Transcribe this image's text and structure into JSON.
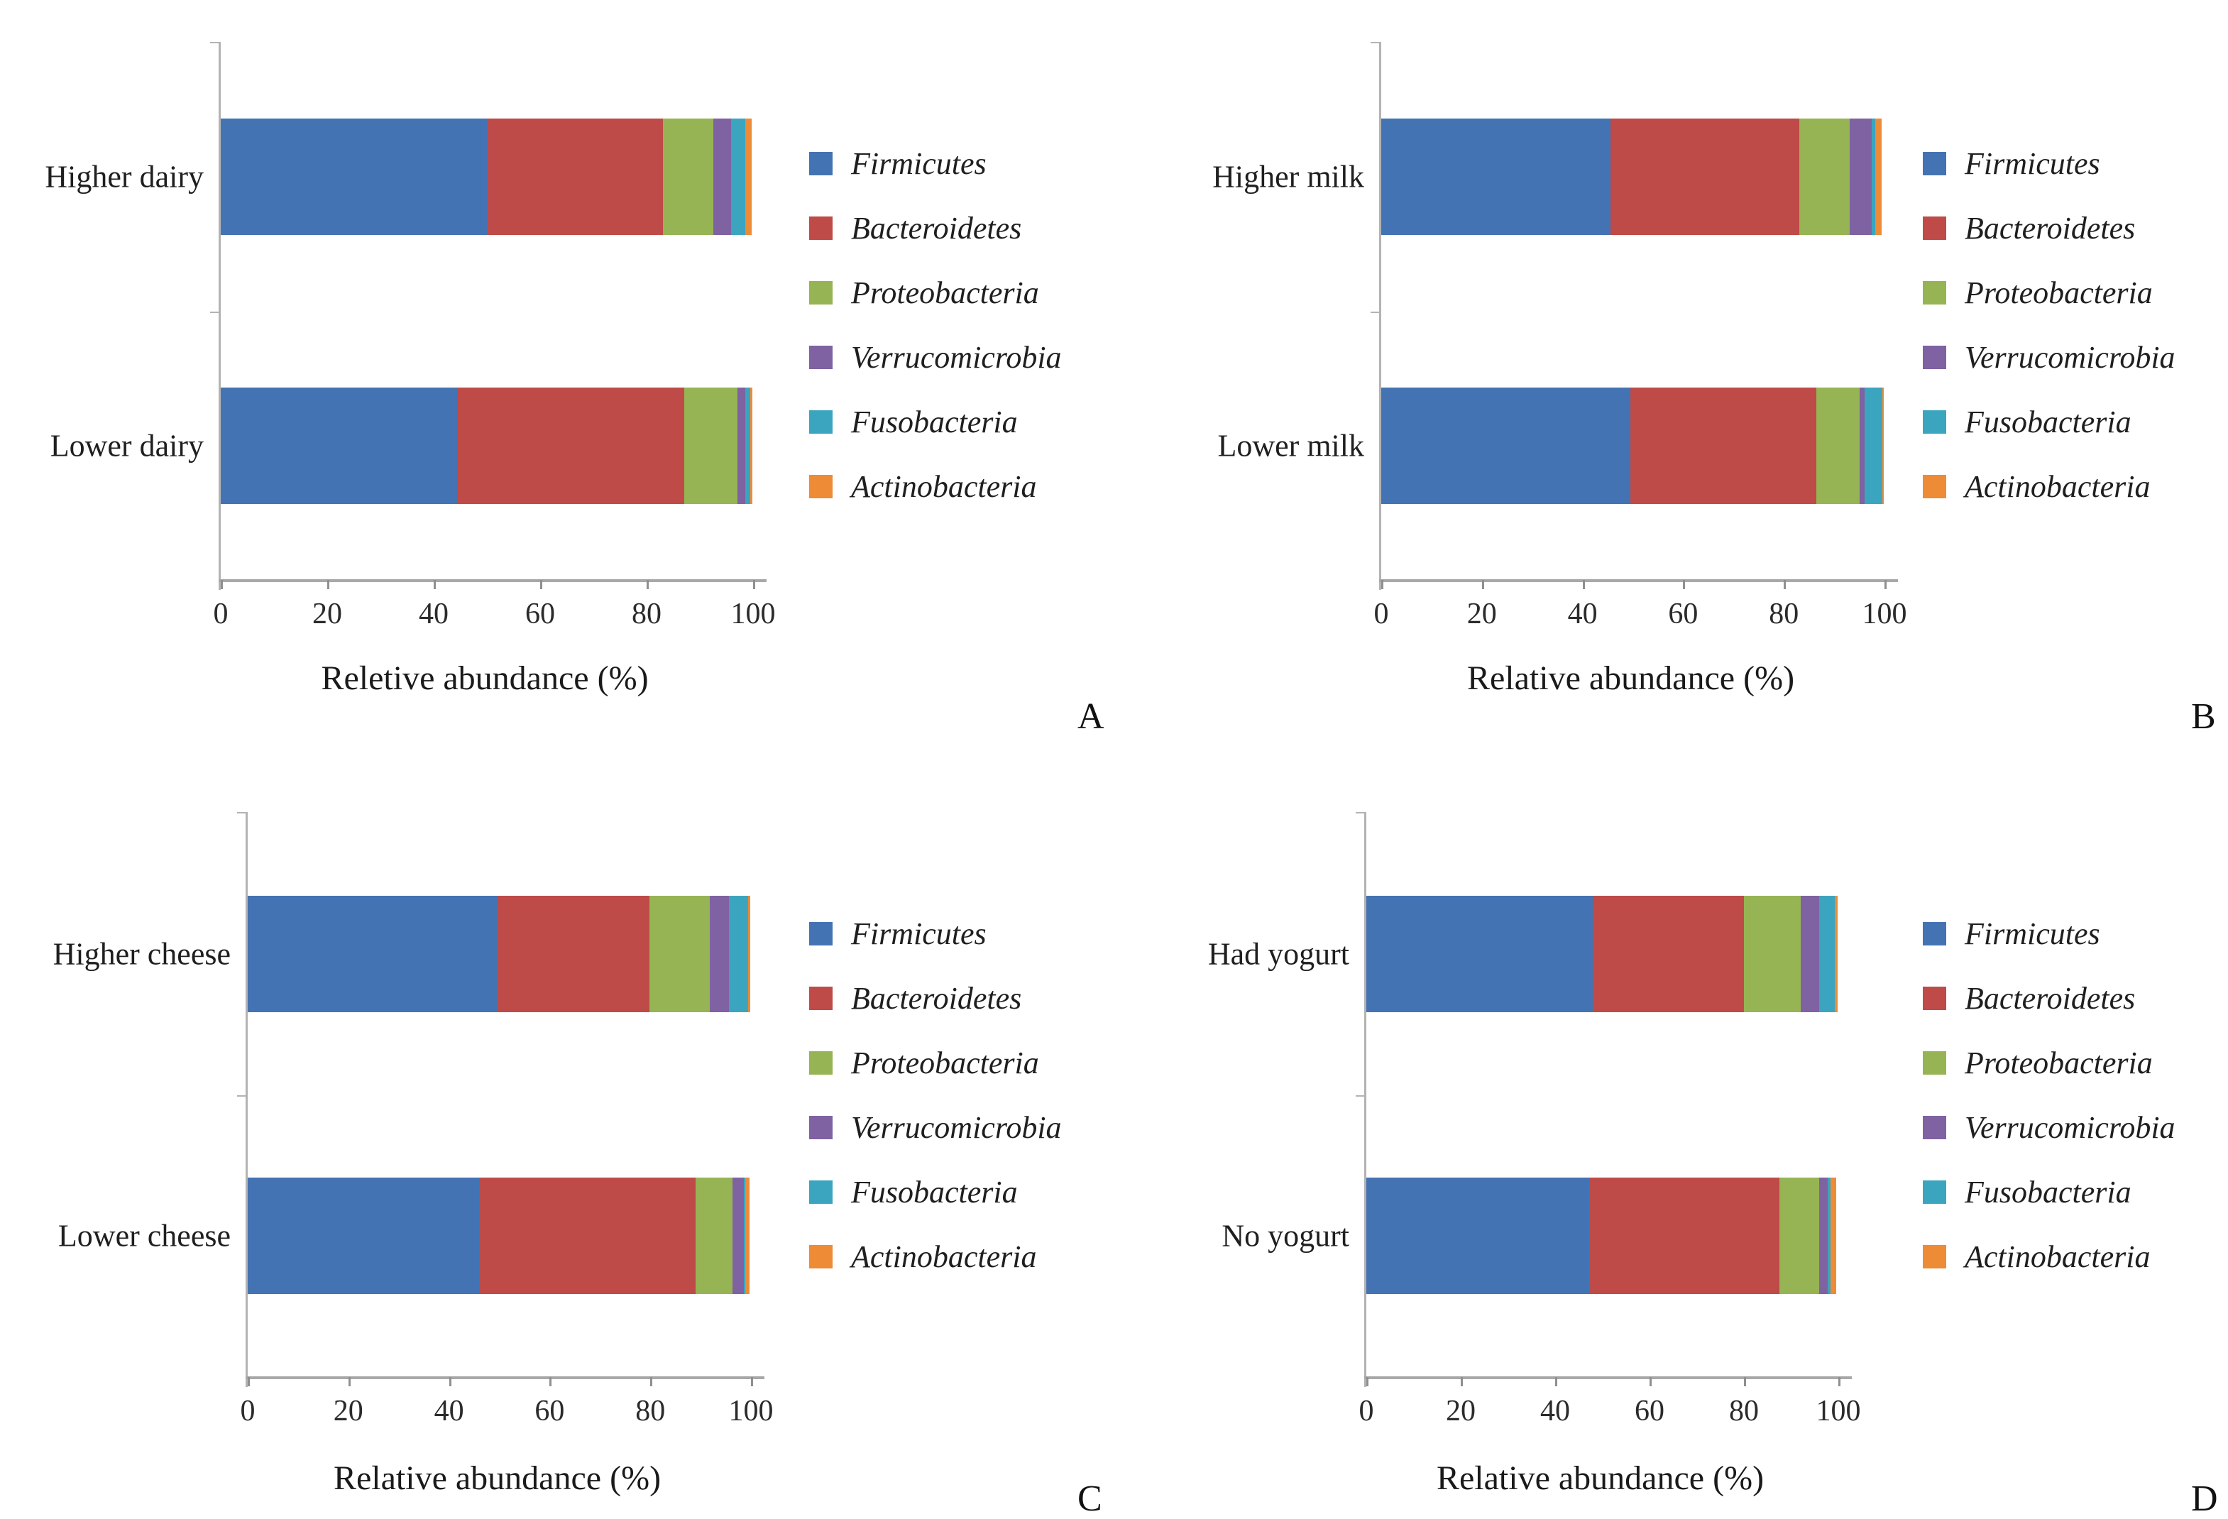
{
  "series_colors": {
    "Firmicutes": "#4473B3",
    "Bacteroidetes": "#BE4B48",
    "Proteobacteria": "#96B454",
    "Verrucomicrobia": "#7E62A1",
    "Fusobacteria": "#3BA5C0",
    "Actinobacteria": "#EE8B36"
  },
  "chart_data": [
    {
      "panel": "A",
      "type": "bar",
      "orientation": "horizontal",
      "stacked": true,
      "categories": [
        "Higher dairy",
        "Lower dairy"
      ],
      "series": [
        {
          "name": "Firmicutes",
          "values": [
            50.0,
            44.5
          ]
        },
        {
          "name": "Bacteroidetes",
          "values": [
            33.0,
            42.6
          ]
        },
        {
          "name": "Proteobacteria",
          "values": [
            9.5,
            10.0
          ]
        },
        {
          "name": "Verrucomicrobia",
          "values": [
            3.4,
            1.4
          ]
        },
        {
          "name": "Fusobacteria",
          "values": [
            2.6,
            1.0
          ]
        },
        {
          "name": "Actinobacteria",
          "values": [
            1.3,
            0.4
          ]
        }
      ],
      "xlabel": "Reletive abundance (%)",
      "xlim": [
        0,
        100
      ],
      "xticks": [
        0,
        20,
        40,
        60,
        80,
        100
      ],
      "legend_position": "right",
      "grid": false
    },
    {
      "panel": "B",
      "type": "bar",
      "orientation": "horizontal",
      "stacked": true,
      "categories": [
        "Higher milk",
        "Lower milk"
      ],
      "series": [
        {
          "name": "Firmicutes",
          "values": [
            45.5,
            49.5
          ]
        },
        {
          "name": "Bacteroidetes",
          "values": [
            37.6,
            36.9
          ]
        },
        {
          "name": "Proteobacteria",
          "values": [
            10.0,
            8.6
          ]
        },
        {
          "name": "Verrucomicrobia",
          "values": [
            4.4,
            1.0
          ]
        },
        {
          "name": "Fusobacteria",
          "values": [
            0.7,
            3.6
          ]
        },
        {
          "name": "Actinobacteria",
          "values": [
            1.3,
            0.3
          ]
        }
      ],
      "xlabel": "Relative abundance (%)",
      "xlim": [
        0,
        100
      ],
      "xticks": [
        0,
        20,
        40,
        60,
        80,
        100
      ],
      "legend_position": "right",
      "grid": false
    },
    {
      "panel": "C",
      "type": "bar",
      "orientation": "horizontal",
      "stacked": true,
      "categories": [
        "Higher cheese",
        "Lower cheese"
      ],
      "series": [
        {
          "name": "Firmicutes",
          "values": [
            49.6,
            46.0
          ]
        },
        {
          "name": "Bacteroidetes",
          "values": [
            30.2,
            43.0
          ]
        },
        {
          "name": "Proteobacteria",
          "values": [
            12.0,
            7.3
          ]
        },
        {
          "name": "Verrucomicrobia",
          "values": [
            3.8,
            2.3
          ]
        },
        {
          "name": "Fusobacteria",
          "values": [
            3.9,
            0.3
          ]
        },
        {
          "name": "Actinobacteria",
          "values": [
            0.4,
            0.8
          ]
        }
      ],
      "xlabel": "Relative abundance (%)",
      "xlim": [
        0,
        100
      ],
      "xticks": [
        0,
        20,
        40,
        60,
        80,
        100
      ],
      "legend_position": "right",
      "grid": false
    },
    {
      "panel": "D",
      "type": "bar",
      "orientation": "horizontal",
      "stacked": true,
      "categories": [
        "Had yogurt",
        "No yogurt"
      ],
      "series": [
        {
          "name": "Firmicutes",
          "values": [
            48.0,
            47.2
          ]
        },
        {
          "name": "Bacteroidetes",
          "values": [
            32.0,
            40.3
          ]
        },
        {
          "name": "Proteobacteria",
          "values": [
            12.0,
            8.5
          ]
        },
        {
          "name": "Verrucomicrobia",
          "values": [
            3.9,
            1.8
          ]
        },
        {
          "name": "Fusobacteria",
          "values": [
            3.3,
            0.5
          ]
        },
        {
          "name": "Actinobacteria",
          "values": [
            0.7,
            1.2
          ]
        }
      ],
      "xlabel": "Relative abundance (%)",
      "xlim": [
        0,
        100
      ],
      "xticks": [
        0,
        20,
        40,
        60,
        80,
        100
      ],
      "legend_position": "right",
      "grid": false
    }
  ]
}
